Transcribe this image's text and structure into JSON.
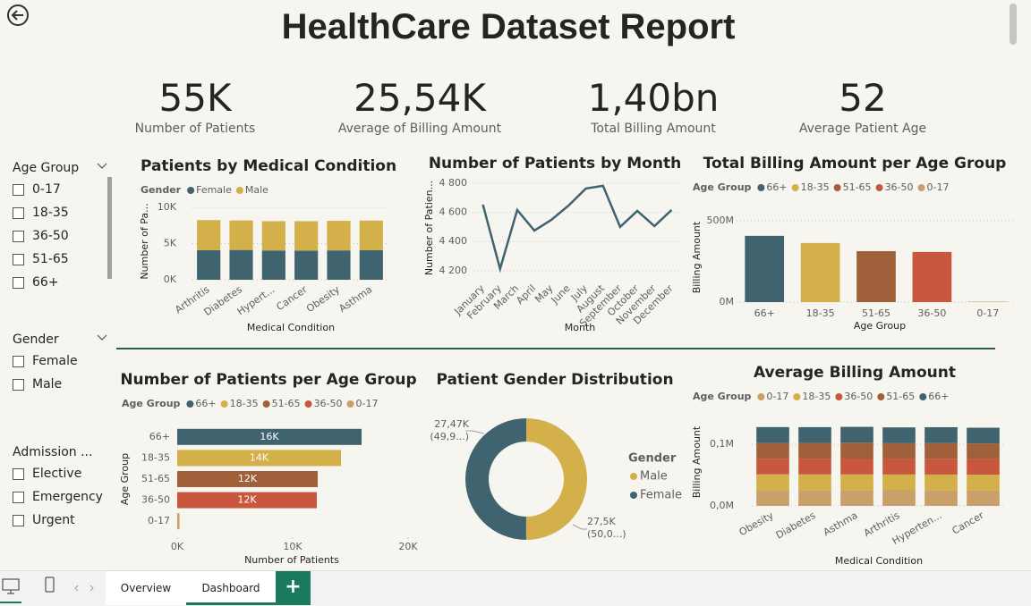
{
  "header": {
    "title": "HealthCare Dataset Report"
  },
  "kpis": [
    {
      "value": "55K",
      "label": "Number of Patients"
    },
    {
      "value": "25,54K",
      "label": "Average of Billing Amount"
    },
    {
      "value": "1,40bn",
      "label": "Total Billing Amount"
    },
    {
      "value": "52",
      "label": "Average Patient Age"
    }
  ],
  "slicers": [
    {
      "title": "Age Group",
      "items": [
        "0-17",
        "18-35",
        "36-50",
        "51-65",
        "66+"
      ]
    },
    {
      "title": "Gender",
      "items": [
        "Female",
        "Male"
      ]
    },
    {
      "title": "Admission ...",
      "items": [
        "Elective",
        "Emergency",
        "Urgent"
      ]
    }
  ],
  "tabs": [
    "Overview",
    "Dashboard"
  ],
  "chart_data": [
    {
      "type": "bar",
      "stacked": true,
      "title": "Patients by Medical Condition",
      "legend_title": "Gender",
      "categories": [
        "Arthritis",
        "Diabetes",
        "Hypert...",
        "Cancer",
        "Obesity",
        "Asthma"
      ],
      "series": [
        {
          "name": "Female",
          "color": "#3f6470",
          "values": [
            4100,
            4120,
            4050,
            4030,
            4060,
            4080
          ]
        },
        {
          "name": "Male",
          "color": "#d4b04a",
          "values": [
            4150,
            4080,
            4050,
            4070,
            4090,
            4100
          ]
        }
      ],
      "ylim": [
        0,
        11000
      ],
      "yticks": [
        {
          "value": 0,
          "label": "0K"
        },
        {
          "value": 5000,
          "label": "5K"
        },
        {
          "value": 10000,
          "label": "10K"
        }
      ],
      "y_label": "Number of Pa...",
      "x_label": "Medical Condition",
      "grid": true
    },
    {
      "type": "line",
      "title": "Number of Patients by Month",
      "categories": [
        "January",
        "February",
        "March",
        "April",
        "May",
        "June",
        "July",
        "August",
        "September",
        "October",
        "November",
        "December"
      ],
      "values": [
        4653,
        4212,
        4616,
        4475,
        4549,
        4647,
        4763,
        4782,
        4500,
        4610,
        4506,
        4616
      ],
      "color": "#3f6470",
      "ylim": [
        4150,
        4830
      ],
      "yticks": [
        {
          "value": 4200,
          "label": "4 200"
        },
        {
          "value": 4400,
          "label": "4 400"
        },
        {
          "value": 4600,
          "label": "4 600"
        },
        {
          "value": 4800,
          "label": "4 800"
        }
      ],
      "y_label": "Number of Patien...",
      "x_label": "Month",
      "grid": true
    },
    {
      "type": "bar",
      "title": "Total Billing Amount per Age Group",
      "legend_title": "Age Group",
      "categories": [
        "66+",
        "18-35",
        "51-65",
        "36-50",
        "0-17"
      ],
      "values": [
        407000000,
        363000000,
        313000000,
        308000000,
        3000000
      ],
      "colors": [
        "#3f6470",
        "#d4b04a",
        "#a0603a",
        "#c8573e",
        "#c9a06a"
      ],
      "ylim": [
        0,
        560000000
      ],
      "yticks": [
        {
          "value": 0,
          "label": "0M"
        },
        {
          "value": 500000000,
          "label": "500M"
        }
      ],
      "y_label": "Billing Amount",
      "x_label": "Age Group",
      "grid": true
    },
    {
      "type": "bar",
      "orientation": "horizontal",
      "title": "Number of Patients per Age Group",
      "legend_title": "Age Group",
      "categories": [
        "66+",
        "18-35",
        "51-65",
        "36-50",
        "0-17"
      ],
      "values": [
        15970,
        14190,
        12170,
        12090,
        200
      ],
      "value_labels": [
        "16K",
        "14K",
        "12K",
        "12K",
        null
      ],
      "colors": [
        "#3f6470",
        "#d4b04a",
        "#a0603a",
        "#c8573e",
        "#c9a06a"
      ],
      "xlim": [
        0,
        20000
      ],
      "xticks": [
        {
          "value": 0,
          "label": "0K"
        },
        {
          "value": 10000,
          "label": "10K"
        },
        {
          "value": 20000,
          "label": "20K"
        }
      ],
      "y_label": "Age Group",
      "x_label": "Number of Patients",
      "grid": false
    },
    {
      "type": "pie",
      "donut": true,
      "title": "Patient Gender Distribution",
      "legend_title": "Gender",
      "categories": [
        "Male",
        "Female"
      ],
      "values": [
        27500,
        27470
      ],
      "value_labels": [
        "27,5K (50,0...)",
        "27,47K (49,9...)"
      ],
      "colors": [
        "#d4b04a",
        "#3f6470"
      ]
    },
    {
      "type": "bar",
      "stacked": true,
      "title": "Average Billing Amount",
      "legend_title": "Age Group",
      "categories": [
        "Obesity",
        "Diabetes",
        "Asthma",
        "Arthritis",
        "Hyperten...",
        "Cancer"
      ],
      "series": [
        {
          "name": "0-17",
          "color": "#c9a06a",
          "values": [
            25500,
            25300,
            25700,
            25400,
            25600,
            25200
          ]
        },
        {
          "name": "18-35",
          "color": "#d4b04a",
          "values": [
            25800,
            25900,
            25400,
            25600,
            25300,
            25500
          ]
        },
        {
          "name": "36-50",
          "color": "#c8573e",
          "values": [
            25200,
            25600,
            25800,
            25300,
            25700,
            25400
          ]
        },
        {
          "name": "51-65",
          "color": "#a0603a",
          "values": [
            25600,
            25400,
            25900,
            25500,
            25400,
            25300
          ]
        },
        {
          "name": "66+",
          "color": "#3f6470",
          "values": [
            25900,
            25700,
            25600,
            25700,
            25800,
            25600
          ]
        }
      ],
      "ylim": [
        0,
        135000
      ],
      "yticks": [
        {
          "value": 0,
          "label": "0,0M"
        },
        {
          "value": 100000,
          "label": "0,1M"
        }
      ],
      "y_label": "Billing Amount",
      "x_label": "Medical Condition",
      "grid": true
    }
  ]
}
